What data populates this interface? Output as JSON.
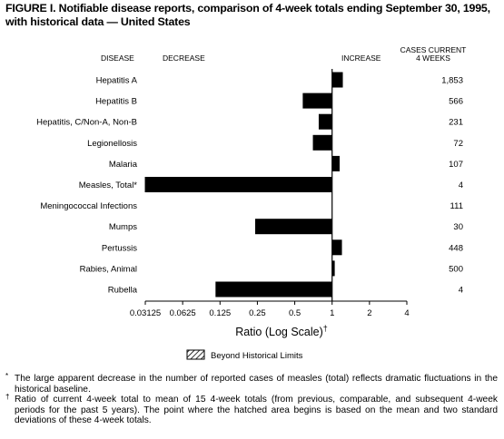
{
  "figure_title": "FIGURE I. Notifiable disease reports, comparison of 4-week totals ending September 30, 1995, with historical data — United States",
  "headers": {
    "disease": "DISEASE",
    "decrease": "DECREASE",
    "increase": "INCREASE",
    "cases_line1": "CASES CURRENT",
    "cases_line2": "4 WEEKS"
  },
  "xaxis": {
    "label": "Ratio (Log Scale)",
    "label_mark": "†"
  },
  "legend": {
    "label": "Beyond Historical Limits"
  },
  "footnotes": [
    {
      "mark": "*",
      "text": "The large apparent decrease in the number of reported cases of measles (total) reflects dramatic fluctuations in the historical baseline."
    },
    {
      "mark": "†",
      "text": "Ratio of current 4-week total to mean of 15 4-week totals (from previous, comparable, and subsequent 4-week periods for the past 5 years). The point where the hatched area begins is based on the mean and two standard deviations of these 4-week totals."
    }
  ],
  "chart_data": {
    "type": "bar",
    "orientation": "horizontal",
    "scale": "log2",
    "title": "Notifiable disease reports, comparison of 4-week totals ending September 30, 1995, with historical data — United States",
    "xlabel": "Ratio (Log Scale)",
    "xlim": [
      0.03125,
      4
    ],
    "ticks": [
      "0.03125",
      "0.0625",
      "0.125",
      "0.25",
      "0.5",
      "1",
      "2",
      "4"
    ],
    "tick_values": [
      0.03125,
      0.0625,
      0.125,
      0.25,
      0.5,
      1,
      2,
      4
    ],
    "reference_line": 1,
    "categories": [
      "Hepatitis A",
      "Hepatitis B",
      "Hepatitis, C/Non-A, Non-B",
      "Legionellosis",
      "Malaria",
      "Measles, Total*",
      "Meningococcal Infections",
      "Mumps",
      "Pertussis",
      "Rabies, Animal",
      "Rubella"
    ],
    "values": [
      1.22,
      0.58,
      0.78,
      0.7,
      1.15,
      0.031,
      1.0,
      0.24,
      1.2,
      1.05,
      0.115
    ],
    "cases_current_4_weeks": [
      "1,853",
      "566",
      "231",
      "72",
      "107",
      "4",
      "111",
      "30",
      "448",
      "500",
      "4"
    ],
    "legend": [
      "Beyond Historical Limits"
    ],
    "grid": false
  }
}
